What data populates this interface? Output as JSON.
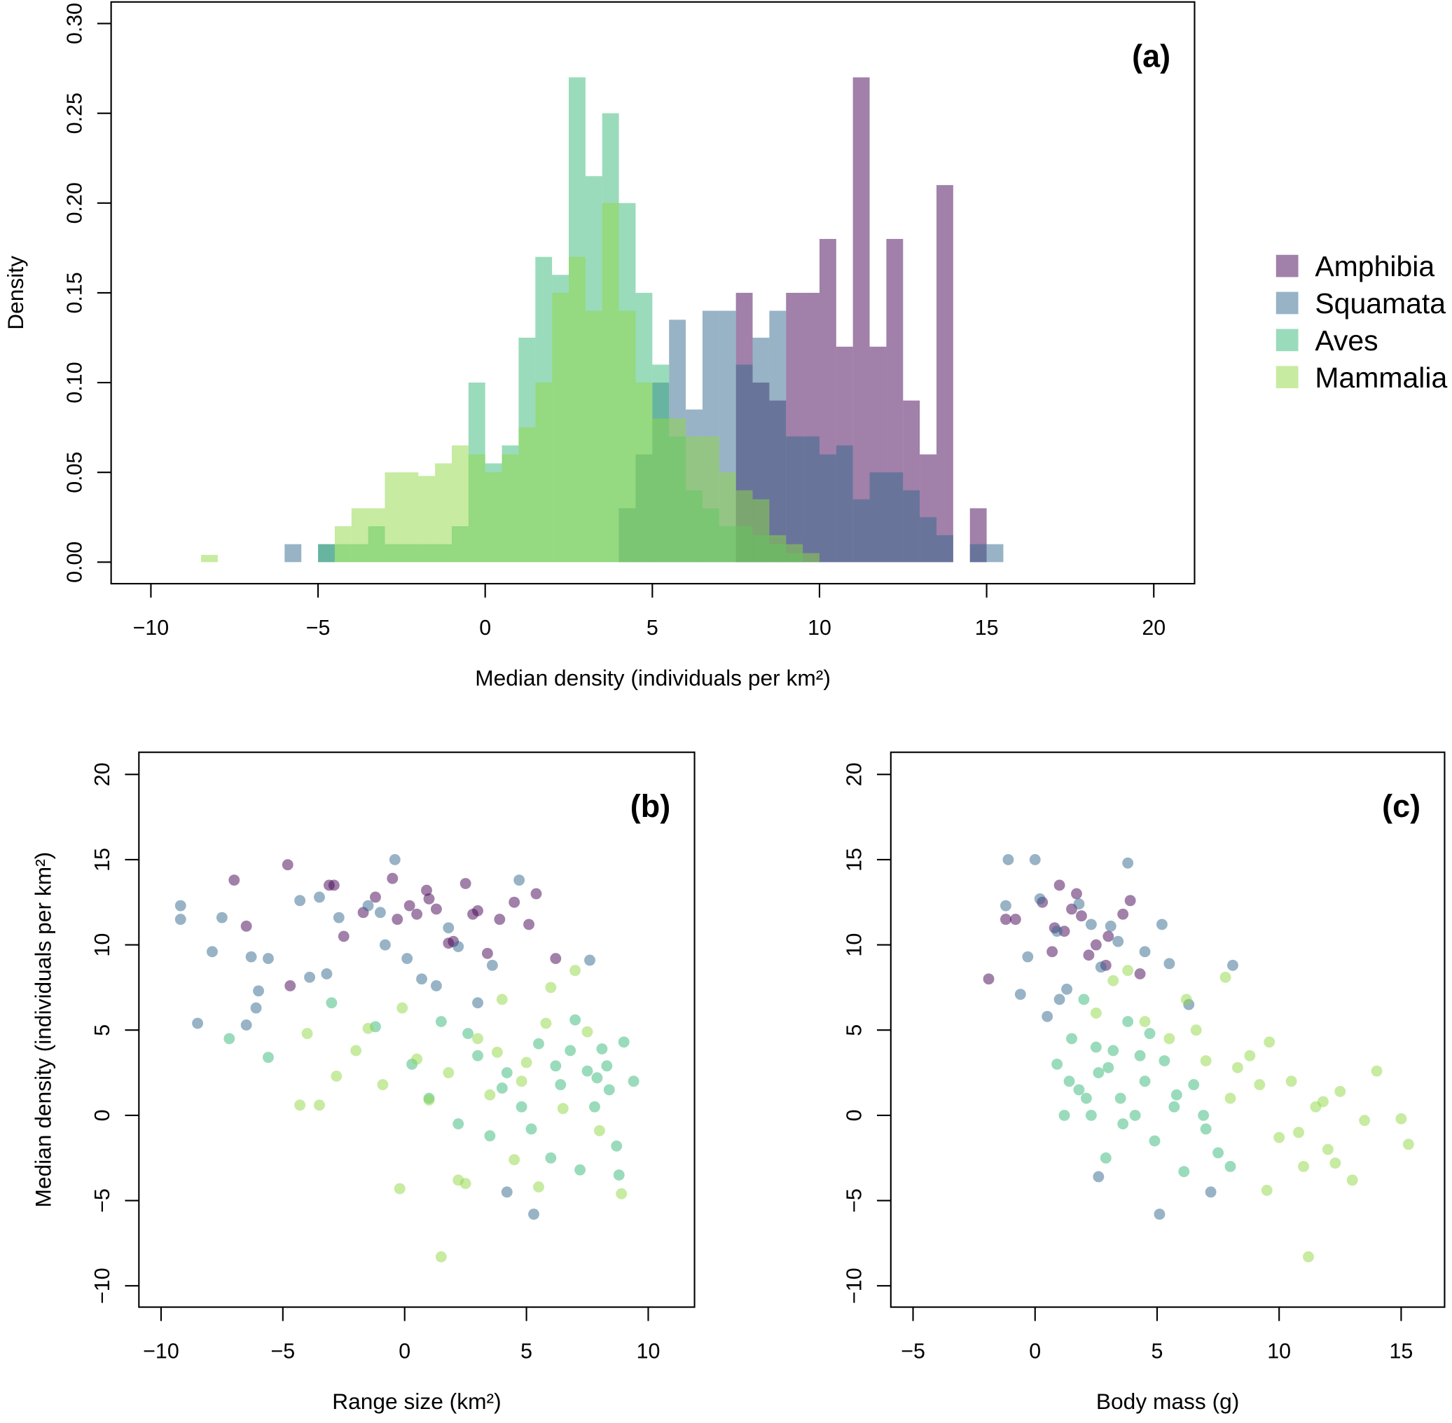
{
  "chart_data": [
    {
      "type": "histogram",
      "xlabel": "Median density (individuals per km²)",
      "ylabel": "Density",
      "annotation": "(a)",
      "legend": "right",
      "alpha": 0.5,
      "bins": [
        -8.5,
        -8,
        -7.5,
        -7,
        -6.5,
        -6,
        -5.5,
        -5,
        -4.5,
        -4,
        -3.5,
        -3,
        -2.5,
        -2,
        -1.5,
        -1,
        -0.5,
        0,
        0.5,
        1,
        1.5,
        2,
        2.5,
        3,
        3.5,
        4,
        4.5,
        5,
        5.5,
        6,
        6.5,
        7,
        7.5,
        8,
        8.5,
        9,
        9.5,
        10,
        10.5,
        11,
        11.5,
        12,
        12.5,
        13,
        13.5,
        14,
        14.5,
        15,
        15.5
      ],
      "series": [
        {
          "name": "Amphibia",
          "color": "#440154",
          "values": [
            0,
            0,
            0,
            0,
            0,
            0,
            0,
            0,
            0,
            0,
            0,
            0,
            0,
            0,
            0,
            0,
            0,
            0,
            0,
            0,
            0,
            0,
            0,
            0,
            0,
            0,
            0,
            0,
            0,
            0,
            0,
            0,
            0.15,
            0.1,
            0.09,
            0.15,
            0.15,
            0.18,
            0.12,
            0.27,
            0.12,
            0.18,
            0.09,
            0.06,
            0.21,
            0,
            0.03,
            0
          ]
        },
        {
          "name": "Squamata",
          "color": "#31688e",
          "values": [
            0,
            0,
            0,
            0,
            0,
            0.01,
            0,
            0.01,
            0,
            0,
            0,
            0,
            0,
            0,
            0,
            0,
            0,
            0,
            0,
            0,
            0,
            0,
            0,
            0,
            0,
            0.03,
            0.06,
            0.1,
            0.135,
            0.085,
            0.14,
            0.14,
            0.11,
            0.125,
            0.14,
            0.07,
            0.07,
            0.06,
            0.065,
            0.035,
            0.05,
            0.05,
            0.04,
            0.025,
            0.015,
            0,
            0.01,
            0.01
          ]
        },
        {
          "name": "Aves",
          "color": "#35b779",
          "values": [
            0,
            0,
            0,
            0,
            0,
            0,
            0,
            0.01,
            0.01,
            0.01,
            0.02,
            0.01,
            0.01,
            0.01,
            0.01,
            0.02,
            0.1,
            0.055,
            0.065,
            0.125,
            0.17,
            0.16,
            0.27,
            0.215,
            0.25,
            0.2,
            0.15,
            0.11,
            0.07,
            0.04,
            0.03,
            0.02,
            0.02,
            0.015,
            0.01,
            0.005,
            0,
            0,
            0,
            0,
            0,
            0,
            0,
            0,
            0,
            0,
            0,
            0
          ]
        },
        {
          "name": "Mammalia",
          "color": "#8fd744",
          "values": [
            0.004,
            0,
            0,
            0,
            0,
            0,
            0,
            0,
            0.02,
            0.03,
            0.03,
            0.05,
            0.05,
            0.048,
            0.055,
            0.065,
            0.06,
            0.05,
            0.06,
            0.075,
            0.1,
            0.15,
            0.17,
            0.14,
            0.2,
            0.14,
            0.1,
            0.08,
            0.08,
            0.07,
            0.07,
            0.05,
            0.04,
            0.035,
            0.015,
            0.01,
            0.005,
            0,
            0,
            0,
            0,
            0,
            0,
            0,
            0,
            0,
            0,
            0
          ]
        }
      ],
      "xlim": [
        -11.19,
        21.22
      ],
      "ylim": [
        -0.012,
        0.312
      ],
      "xticks": [
        {
          "value": -10,
          "label": "−10"
        },
        {
          "value": -5,
          "label": "−5"
        },
        0,
        5,
        10,
        15,
        20
      ],
      "yticks": [
        {
          "value": 0,
          "label": "0.00"
        },
        0.05,
        {
          "value": 0.1,
          "label": "0.10"
        },
        0.15,
        {
          "value": 0.2,
          "label": "0.20"
        },
        0.25,
        {
          "value": 0.3,
          "label": "0.30"
        }
      ]
    },
    {
      "type": "scatter",
      "xlabel": "Range size (km²)",
      "ylabel": "Median density (individuals per km²)",
      "annotation": "(b)",
      "alpha": 0.5,
      "series": [
        {
          "color": "#440154",
          "x": [
            -7,
            -6.5,
            -4.8,
            -4.7,
            -3.1,
            -2.9,
            -2.5,
            -1.2,
            -0.5,
            -0.3,
            0.2,
            0.5,
            1,
            1.3,
            1.8,
            2,
            2.5,
            3,
            3.4,
            3.9,
            4.5,
            5.1,
            5.4,
            6.2,
            -1.7,
            0.9,
            2.8
          ],
          "y": [
            13.8,
            11.1,
            14.7,
            7.6,
            13.5,
            13.5,
            10.5,
            12.8,
            13.9,
            11.5,
            12.3,
            11.8,
            12.7,
            12.1,
            10.1,
            10.2,
            13.6,
            12.0,
            9.5,
            11.5,
            12.5,
            11.2,
            13.0,
            9.2,
            11.9,
            13.2,
            11.8
          ]
        },
        {
          "color": "#31688e",
          "x": [
            -9.2,
            -9.2,
            -8.5,
            -7.9,
            -7.5,
            -6.5,
            -6.3,
            -6,
            -5.6,
            -4.3,
            -3.9,
            -3.5,
            -3.2,
            -2.7,
            -1.5,
            -1,
            -0.4,
            0.1,
            0.7,
            1.3,
            2.2,
            3,
            4.2,
            4.7,
            5.3,
            7.6,
            -6.1,
            -0.8,
            1.8,
            3.6
          ],
          "y": [
            12.3,
            11.5,
            5.4,
            9.6,
            11.6,
            5.3,
            9.3,
            7.3,
            9.2,
            12.6,
            8.1,
            12.8,
            8.3,
            11.6,
            12.3,
            11.9,
            15.0,
            9.2,
            8.0,
            7.6,
            9.9,
            6.6,
            -4.5,
            13.8,
            -5.8,
            9.1,
            6.3,
            10.0,
            11.0,
            8.8
          ]
        },
        {
          "color": "#35b779",
          "x": [
            -7.2,
            -5.6,
            -3,
            -1.2,
            0.3,
            1,
            1.5,
            2.2,
            3,
            3.5,
            4.2,
            4.8,
            5.5,
            6,
            6.4,
            6.8,
            7.2,
            7.5,
            7.8,
            8.1,
            8.4,
            8.7,
            9,
            9.4,
            8.8,
            7,
            6.2,
            5.2,
            4,
            2.6,
            7.9,
            8.3
          ],
          "y": [
            4.5,
            3.4,
            6.6,
            5.2,
            3.0,
            1.0,
            5.5,
            -0.5,
            3.5,
            -1.2,
            2.5,
            0.5,
            4.2,
            -2.5,
            1.8,
            3.8,
            -3.2,
            2.6,
            0.5,
            3.9,
            1.5,
            -1.8,
            4.3,
            2.0,
            -3.5,
            5.6,
            2.9,
            -0.8,
            1.6,
            4.8,
            2.2,
            2.9
          ]
        },
        {
          "color": "#8fd744",
          "x": [
            -4.3,
            -4,
            -3.5,
            -2.8,
            -2,
            -1.5,
            -0.9,
            -0.2,
            0.5,
            1.5,
            -0.1,
            1.8,
            2.5,
            3,
            3.5,
            4,
            4.5,
            5,
            5.5,
            6,
            6.5,
            7,
            7.5,
            8,
            8.9,
            2.2,
            3.8,
            5.8,
            1,
            4.8
          ],
          "y": [
            0.6,
            4.8,
            0.6,
            2.3,
            3.8,
            5.1,
            1.8,
            -4.3,
            3.3,
            -8.3,
            6.3,
            2.5,
            -4,
            4.5,
            1.2,
            6.8,
            -2.6,
            3.1,
            -4.2,
            7.5,
            0.4,
            8.5,
            4.9,
            -0.9,
            -4.6,
            -3.8,
            3.7,
            5.4,
            0.9,
            2.0
          ]
        }
      ],
      "xlim": [
        -10.91,
        11.9
      ],
      "ylim": [
        -11.25,
        21.3
      ],
      "xticks": [
        {
          "value": -10,
          "label": "−10"
        },
        {
          "value": -5,
          "label": "−5"
        },
        0,
        5,
        10
      ],
      "yticks": [
        {
          "value": -10,
          "label": "−10"
        },
        {
          "value": -5,
          "label": "−5"
        },
        0,
        5,
        10,
        15,
        20
      ]
    },
    {
      "type": "scatter",
      "xlabel": "Body mass (g)",
      "annotation": "(c)",
      "alpha": 0.5,
      "series": [
        {
          "color": "#440154",
          "x": [
            -1.9,
            -1.2,
            -0.8,
            0.3,
            0.7,
            1,
            1.2,
            1.5,
            1.9,
            2.2,
            2.5,
            3,
            3.6,
            3.9,
            4.3,
            1.7,
            0.8,
            2.9
          ],
          "y": [
            8.0,
            11.5,
            11.5,
            12.5,
            9.6,
            13.5,
            10.8,
            12.1,
            11.7,
            9.4,
            10.0,
            10.5,
            11.8,
            12.6,
            8.3,
            13.0,
            11.0,
            8.8
          ]
        },
        {
          "color": "#31688e",
          "x": [
            -1.1,
            0,
            -1.2,
            -0.6,
            -0.3,
            0.2,
            0.5,
            0.9,
            1.3,
            1.8,
            2.3,
            2.7,
            3.1,
            3.8,
            4.5,
            5.2,
            5.5,
            6.3,
            7.2,
            8.1,
            2.6,
            5.1,
            1.0,
            3.4
          ],
          "y": [
            15,
            15,
            12.3,
            7.1,
            9.3,
            12.7,
            5.8,
            10.8,
            7.4,
            12.4,
            11.2,
            8.7,
            11.1,
            14.8,
            9.6,
            11.2,
            8.9,
            6.5,
            -4.5,
            8.8,
            -3.6,
            -5.8,
            6.8,
            10.2
          ]
        },
        {
          "color": "#35b779",
          "x": [
            0.9,
            1.2,
            1.5,
            1.8,
            2,
            2.3,
            2.6,
            2.9,
            3.2,
            3.5,
            3.8,
            4.1,
            4.5,
            4.9,
            5.3,
            5.7,
            6.1,
            6.5,
            7,
            7.5,
            8,
            1.4,
            2.5,
            3.6,
            4.7,
            5.8,
            6.9,
            3,
            2.1,
            4.3
          ],
          "y": [
            3.0,
            0,
            4.5,
            1.5,
            6.8,
            0,
            2.5,
            -2.5,
            3.8,
            1.0,
            5.5,
            0,
            2.0,
            -1.5,
            3.2,
            0.5,
            -3.3,
            1.8,
            -0.8,
            -2.2,
            -3.0,
            2.0,
            4.0,
            -0.5,
            4.8,
            1.2,
            0.0,
            2.8,
            1.0,
            3.5
          ]
        },
        {
          "color": "#8fd744",
          "x": [
            2.5,
            3.2,
            3.8,
            4.5,
            5.5,
            6.2,
            7,
            7.8,
            8.3,
            8.8,
            9.2,
            9.6,
            10,
            10.5,
            11,
            11.5,
            12,
            12.5,
            13,
            13.5,
            14,
            15,
            15.3,
            11.2,
            9.5,
            10.8,
            12.3,
            8,
            6.6,
            11.8
          ],
          "y": [
            6.0,
            7.9,
            8.5,
            5.5,
            4.5,
            6.8,
            3.2,
            8.1,
            2.8,
            3.5,
            1.8,
            4.3,
            -1.3,
            2.0,
            -3.0,
            0.5,
            -2.0,
            1.4,
            -3.8,
            -0.3,
            2.6,
            -0.2,
            -1.7,
            -8.3,
            -4.4,
            -1.0,
            -2.8,
            1.0,
            5.0,
            0.8
          ]
        }
      ],
      "xlim": [
        -5.91,
        16.78
      ],
      "ylim": [
        -11.25,
        21.3
      ],
      "xticks": [
        {
          "value": -5,
          "label": "−5"
        },
        0,
        5,
        10,
        15
      ],
      "yticks": [
        {
          "value": -10,
          "label": "−10"
        },
        {
          "value": -5,
          "label": "−5"
        },
        0,
        5,
        10,
        15,
        20
      ]
    }
  ]
}
